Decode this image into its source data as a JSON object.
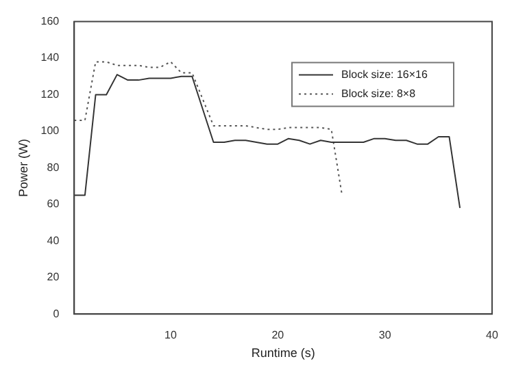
{
  "chart_data": {
    "type": "line",
    "xlabel": "Runtime (s)",
    "ylabel": "Power (W)",
    "xlim": [
      1,
      40
    ],
    "xticks": [
      10,
      20,
      30,
      40
    ],
    "ylim": [
      0,
      160
    ],
    "yticks": [
      0,
      20,
      40,
      60,
      80,
      100,
      120,
      140,
      160
    ],
    "grid": false,
    "legend": "top right",
    "marker": "none",
    "series": [
      {
        "name": "Block size: 16×16",
        "color": "#333333",
        "line_style": "solid",
        "x": [
          1,
          2,
          3,
          4,
          5,
          6,
          7,
          8,
          9,
          10,
          11,
          12,
          14,
          15,
          16,
          17,
          18,
          19,
          20,
          21,
          22,
          23,
          24,
          25,
          26,
          27,
          28,
          29,
          30,
          31,
          32,
          33,
          34,
          35,
          36,
          37
        ],
        "values": [
          65,
          65,
          120,
          120,
          131,
          128,
          128,
          129,
          129,
          129,
          130,
          130,
          94,
          94,
          95,
          95,
          94,
          93,
          93,
          96,
          95,
          93,
          95,
          94,
          94,
          94,
          94,
          96,
          96,
          95,
          95,
          93,
          93,
          97,
          97,
          58
        ]
      },
      {
        "name": "Block size: 8×8",
        "color": "#555555",
        "line_style": "dotted",
        "x": [
          1,
          2,
          3,
          4,
          5,
          6,
          7,
          8,
          9,
          10,
          11,
          12,
          14,
          15,
          16,
          17,
          18,
          19,
          20,
          21,
          22,
          23,
          24,
          25,
          26
        ],
        "values": [
          106,
          106,
          138,
          138,
          136,
          136,
          136,
          135,
          135,
          138,
          132,
          132,
          103,
          103,
          103,
          103,
          102,
          101,
          101,
          102,
          102,
          102,
          102,
          101,
          65
        ]
      }
    ]
  }
}
